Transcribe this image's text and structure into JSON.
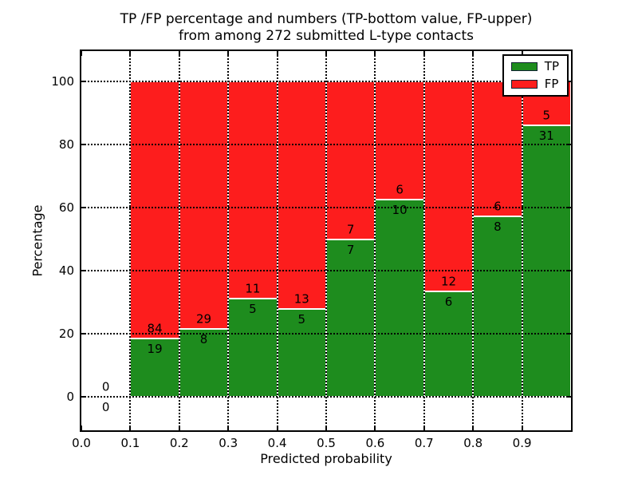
{
  "figure": {
    "title_line1": "TP /FP percentage and numbers (TP-bottom value, FP-upper)",
    "title_line2": "from among 272 submitted L-type contacts"
  },
  "axes": {
    "ylabel": "Percentage",
    "xlabel": "Predicted probability",
    "ytick_labels": [
      "0",
      "20",
      "40",
      "60",
      "80",
      "100"
    ],
    "ytick_values": [
      0,
      20,
      40,
      60,
      80,
      100
    ],
    "xtick_labels": [
      "0.0",
      "0.1",
      "0.2",
      "0.3",
      "0.4",
      "0.5",
      "0.6",
      "0.7",
      "0.8",
      "0.9"
    ],
    "xtick_values": [
      0,
      0.1,
      0.2,
      0.3,
      0.4,
      0.5,
      0.6,
      0.7,
      0.8,
      0.9
    ],
    "xlim": [
      0,
      1
    ],
    "ylim": [
      -10.5,
      109.5
    ],
    "grid_style": "dotted"
  },
  "legend": {
    "position": "upper right",
    "entries": [
      {
        "label": "TP",
        "color": "#1e8c1e"
      },
      {
        "label": "FP",
        "color": "#fd1d1d"
      }
    ]
  },
  "chart_data": {
    "type": "bar",
    "stacked": true,
    "normalized_to_percent": true,
    "title": "TP /FP percentage and numbers (TP-bottom value, FP-upper) from among 272 submitted L-type contacts",
    "xlabel": "Predicted probability",
    "ylabel": "Percentage",
    "total_contacts": 272,
    "bin_width": 0.1,
    "bins": [
      {
        "range": [
          0.0,
          0.1
        ],
        "tp": 0,
        "fp": 0
      },
      {
        "range": [
          0.1,
          0.2
        ],
        "tp": 19,
        "fp": 84
      },
      {
        "range": [
          0.2,
          0.3
        ],
        "tp": 8,
        "fp": 29
      },
      {
        "range": [
          0.3,
          0.4
        ],
        "tp": 5,
        "fp": 11
      },
      {
        "range": [
          0.4,
          0.5
        ],
        "tp": 5,
        "fp": 13
      },
      {
        "range": [
          0.5,
          0.6
        ],
        "tp": 7,
        "fp": 7
      },
      {
        "range": [
          0.6,
          0.7
        ],
        "tp": 10,
        "fp": 6
      },
      {
        "range": [
          0.7,
          0.8
        ],
        "tp": 6,
        "fp": 12
      },
      {
        "range": [
          0.8,
          0.9
        ],
        "tp": 8,
        "fp": 6
      },
      {
        "range": [
          0.9,
          1.0
        ],
        "tp": 31,
        "fp": 5
      }
    ],
    "colors": {
      "tp": "#1e8c1e",
      "fp": "#fd1d1d"
    },
    "bar_edge_color": "#ffffff",
    "legend_position": "upper right",
    "grid": true
  }
}
